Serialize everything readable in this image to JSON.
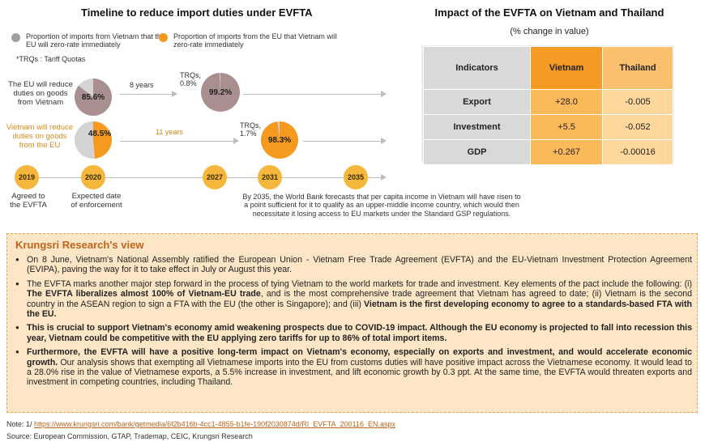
{
  "timeline": {
    "title": "Timeline to reduce import duties under EVFTA",
    "legend": [
      {
        "label": "Proportion of imports from Vietnam that the EU will zero-rate immediately",
        "color": "#a0a0a0"
      },
      {
        "label": "Proportion of imports from the EU that Vietnam will zero-rate immediately",
        "color": "#f59a1e"
      }
    ],
    "trq_note": "*TRQs : Tariff Quotas",
    "row1": {
      "label": "The EU will reduce duties on goods from Vietnam",
      "start_pct": "85.6%",
      "duration": "8 years",
      "trq": "TRQs, 0.8%",
      "end_pct": "99.2%",
      "start_value": 85.6,
      "end_value": 99.2
    },
    "row2": {
      "label": "Vietnam will reduce duties on goods from the EU",
      "start_pct": "48.5%",
      "duration": "11 years",
      "trq": "TRQs, 1.7%",
      "end_pct": "98.3%",
      "start_value": 48.5,
      "end_value": 98.3
    },
    "years": [
      "2019",
      "2020",
      "2027",
      "2031",
      "2035"
    ],
    "year2019_caption": "Agreed to the EVFTA",
    "year2020_caption": "Expected date of enforcement",
    "forecast": "By 2035, the World Bank forecasts that per capita income in Vietnam will have risen to a point sufficient for it to qualify as an upper-middle income country, which would then necessitate it losing access to EU markets under the Standard GSP regulations."
  },
  "impact": {
    "title": "Impact of the EVFTA on Vietnam and Thailand",
    "subtitle": "(% change in value)",
    "headers": [
      "Indicators",
      "Vietnam",
      "Thailand"
    ],
    "rows": [
      {
        "indicator": "Export",
        "vietnam": "+28.0",
        "thailand": "-0.005"
      },
      {
        "indicator": "Investment",
        "vietnam": "+5.5",
        "thailand": "-0.052"
      },
      {
        "indicator": "GDP",
        "vietnam": "+0.267",
        "thailand": "-0.00016"
      }
    ]
  },
  "view": {
    "title": "Krungsri Research's view",
    "b1": "On 8 June, Vietnam's National Assembly ratified the European Union - Vietnam Free Trade Agreement (EVFTA) and the EU-Vietnam Investment Protection Agreement (EVIPA), paving the way for it to take effect in July or August this year.",
    "b2a": "The EVFTA marks another major step forward in the process of tying Vietnam to the world markets for trade and investment. Key elements of the pact include the following: (i) ",
    "b2b": "The EVFTA liberalizes almost 100% of Vietnam-EU trade",
    "b2c": ", and is the most comprehensive trade agreement that Vietnam has agreed to date; (ii) Vietnam is the second country in the ASEAN region to sign a FTA with the EU (the other is Singapore); and (iii) ",
    "b2d": "Vietnam is the first developing economy to agree to a standards-based FTA with the EU.",
    "b3": "This is crucial to support Vietnam's economy amid weakening prospects due to COVID-19 impact. Although the EU economy is projected to fall into recession this year, Vietnam could be competitive with the EU applying zero tariffs for up to 86% of total import items.",
    "b4a": "Furthermore, the EVFTA will have a positive long-term impact on Vietnam's economy, especially on exports and investment, and would accelerate economic growth.",
    "b4b": " Our analysis shows that exempting all Vietnamese imports into the EU from customs duties will have positive impact across the Vietnamese economy. It would lead to a 28.0% rise in the value of Vietnamese exports, a 5.5% increase in investment, and lift economic growth by 0.3 ppt. At the same time, the EVFTA would threaten exports and investment in competing countries, including Thailand."
  },
  "footer": {
    "note_label": "Note: 1/ ",
    "note_url": "https://www.krungsri.com/bank/getmedia/6f2b416b-4cc1-4855-b1fe-190f2030874d/RI_EVFTA_200116_EN.aspx",
    "source": "Source: European Commission, GTAP, Trademap, CEIC, Krungsri Research"
  }
}
